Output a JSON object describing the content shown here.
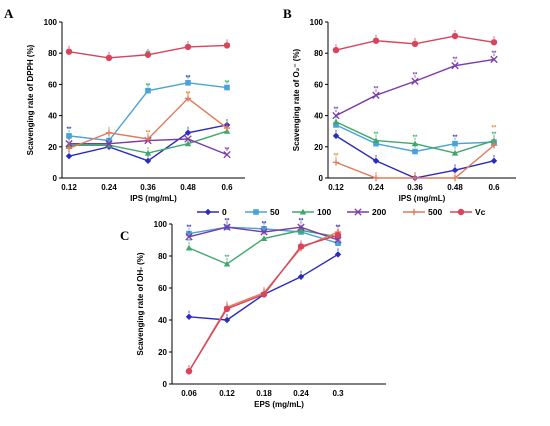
{
  "colors": {
    "0": "#2b2bbf",
    "50": "#4aa3d8",
    "100": "#3ea86a",
    "200": "#7a3aa8",
    "500": "#e07a5a",
    "Vc": "#d9435b",
    "sig_blue": "#2b2bbf",
    "sig_green": "#3ea86a",
    "sig_orange": "#e08a1e",
    "sig_purple": "#7a3aa8"
  },
  "legend": [
    "0",
    "50",
    "100",
    "200",
    "500",
    "Vc"
  ],
  "chart_data": [
    {
      "panel": "A",
      "type": "line",
      "title": "",
      "xlabel": "IPS (mg/mL)",
      "ylabel": "Scavenging rate of  DPPH (%)",
      "categories": [
        "0.12",
        "0.24",
        "0.36",
        "0.48",
        "0.6"
      ],
      "ylim": [
        0,
        100
      ],
      "yticks": [
        0,
        20,
        40,
        60,
        80,
        100
      ],
      "series": [
        {
          "name": "0",
          "values": [
            14,
            20,
            11,
            29,
            34
          ]
        },
        {
          "name": "50",
          "values": [
            27,
            24,
            56,
            61,
            58
          ]
        },
        {
          "name": "100",
          "values": [
            21,
            21,
            16,
            22,
            30
          ]
        },
        {
          "name": "200",
          "values": [
            22,
            22,
            24,
            25,
            15
          ]
        },
        {
          "name": "500",
          "values": [
            19,
            29,
            25,
            51,
            32
          ]
        },
        {
          "name": "Vc",
          "values": [
            81,
            77,
            79,
            84,
            85
          ]
        }
      ],
      "markers": [
        {
          "x": "0.12",
          "y": 30,
          "text": "**",
          "color": "sig_blue"
        },
        {
          "x": "0.36",
          "y": 58,
          "text": "**",
          "color": "sig_green"
        },
        {
          "x": "0.36",
          "y": 28,
          "text": "**",
          "color": "sig_orange"
        },
        {
          "x": "0.48",
          "y": 63,
          "text": "**",
          "color": "sig_blue"
        },
        {
          "x": "0.48",
          "y": 53,
          "text": "**",
          "color": "sig_orange"
        },
        {
          "x": "0.6",
          "y": 60,
          "text": "**",
          "color": "sig_green"
        },
        {
          "x": "0.6",
          "y": 17,
          "text": "**",
          "color": "sig_purple"
        },
        {
          "x": "0.36",
          "y": 79,
          "text": "**",
          "color": "sig_green"
        }
      ]
    },
    {
      "panel": "B",
      "type": "line",
      "title": "",
      "xlabel": "IPS (mg/mL)",
      "ylabel": "Scavenging rate of O₂⁻ (%)",
      "categories": [
        "0.12",
        "0.24",
        "0.36",
        "0.48",
        "0.6"
      ],
      "ylim": [
        0,
        100
      ],
      "yticks": [
        0,
        20,
        40,
        60,
        80,
        100
      ],
      "series": [
        {
          "name": "0",
          "values": [
            27,
            11,
            0,
            5,
            11
          ]
        },
        {
          "name": "50",
          "values": [
            34,
            22,
            17,
            22,
            23
          ]
        },
        {
          "name": "100",
          "values": [
            36,
            24,
            22,
            16,
            24
          ]
        },
        {
          "name": "200",
          "values": [
            40,
            53,
            62,
            72,
            76
          ]
        },
        {
          "name": "500",
          "values": [
            10,
            0,
            0,
            0,
            21
          ]
        },
        {
          "name": "Vc",
          "values": [
            82,
            88,
            86,
            91,
            87
          ]
        }
      ],
      "markers": [
        {
          "x": "0.12",
          "y": 43,
          "text": "**",
          "color": "sig_purple"
        },
        {
          "x": "0.24",
          "y": 56,
          "text": "**",
          "color": "sig_purple"
        },
        {
          "x": "0.36",
          "y": 65,
          "text": "**",
          "color": "sig_purple"
        },
        {
          "x": "0.48",
          "y": 75,
          "text": "**",
          "color": "sig_purple"
        },
        {
          "x": "0.6",
          "y": 79,
          "text": "**",
          "color": "sig_purple"
        },
        {
          "x": "0.24",
          "y": 27,
          "text": "**",
          "color": "sig_green"
        },
        {
          "x": "0.36",
          "y": 25,
          "text": "**",
          "color": "sig_green"
        },
        {
          "x": "0.48",
          "y": 25,
          "text": "**",
          "color": "sig_blue"
        },
        {
          "x": "0.6",
          "y": 27,
          "text": "**",
          "color": "sig_green"
        },
        {
          "x": "0.12",
          "y": 13,
          "text": "**",
          "color": "sig_orange"
        },
        {
          "x": "0.6",
          "y": 31,
          "text": "**",
          "color": "sig_orange"
        }
      ]
    },
    {
      "panel": "C",
      "type": "line",
      "title": "",
      "xlabel": "EPS (mg/mL)",
      "ylabel": "Scavenging rate of OH- (%)",
      "categories": [
        "0.06",
        "0.12",
        "0.18",
        "0.24",
        "0.3"
      ],
      "ylim": [
        0,
        100
      ],
      "yticks": [
        0,
        20,
        40,
        60,
        80,
        100
      ],
      "series": [
        {
          "name": "0",
          "values": [
            42,
            40,
            56,
            67,
            81
          ]
        },
        {
          "name": "50",
          "values": [
            94,
            98,
            97,
            95,
            88
          ]
        },
        {
          "name": "100",
          "values": [
            85,
            75,
            91,
            96,
            92
          ]
        },
        {
          "name": "200",
          "values": [
            92,
            98,
            95,
            98,
            90
          ]
        },
        {
          "name": "500",
          "values": [
            8,
            48,
            57,
            85,
            95
          ]
        },
        {
          "name": "Vc",
          "values": [
            8,
            47,
            56,
            86,
            93
          ]
        }
      ],
      "markers": [
        {
          "x": "0.06",
          "y": 97,
          "text": "**",
          "color": "sig_blue"
        },
        {
          "x": "0.12",
          "y": 101,
          "text": "**",
          "color": "sig_blue"
        },
        {
          "x": "0.18",
          "y": 99,
          "text": "**",
          "color": "sig_blue"
        },
        {
          "x": "0.24",
          "y": 101,
          "text": "**",
          "color": "sig_blue"
        },
        {
          "x": "0.3",
          "y": 97,
          "text": "**",
          "color": "sig_blue"
        },
        {
          "x": "0.12",
          "y": 78,
          "text": "**",
          "color": "sig_green"
        },
        {
          "x": "0.06",
          "y": 88,
          "text": "**",
          "color": "sig_green"
        }
      ]
    }
  ]
}
